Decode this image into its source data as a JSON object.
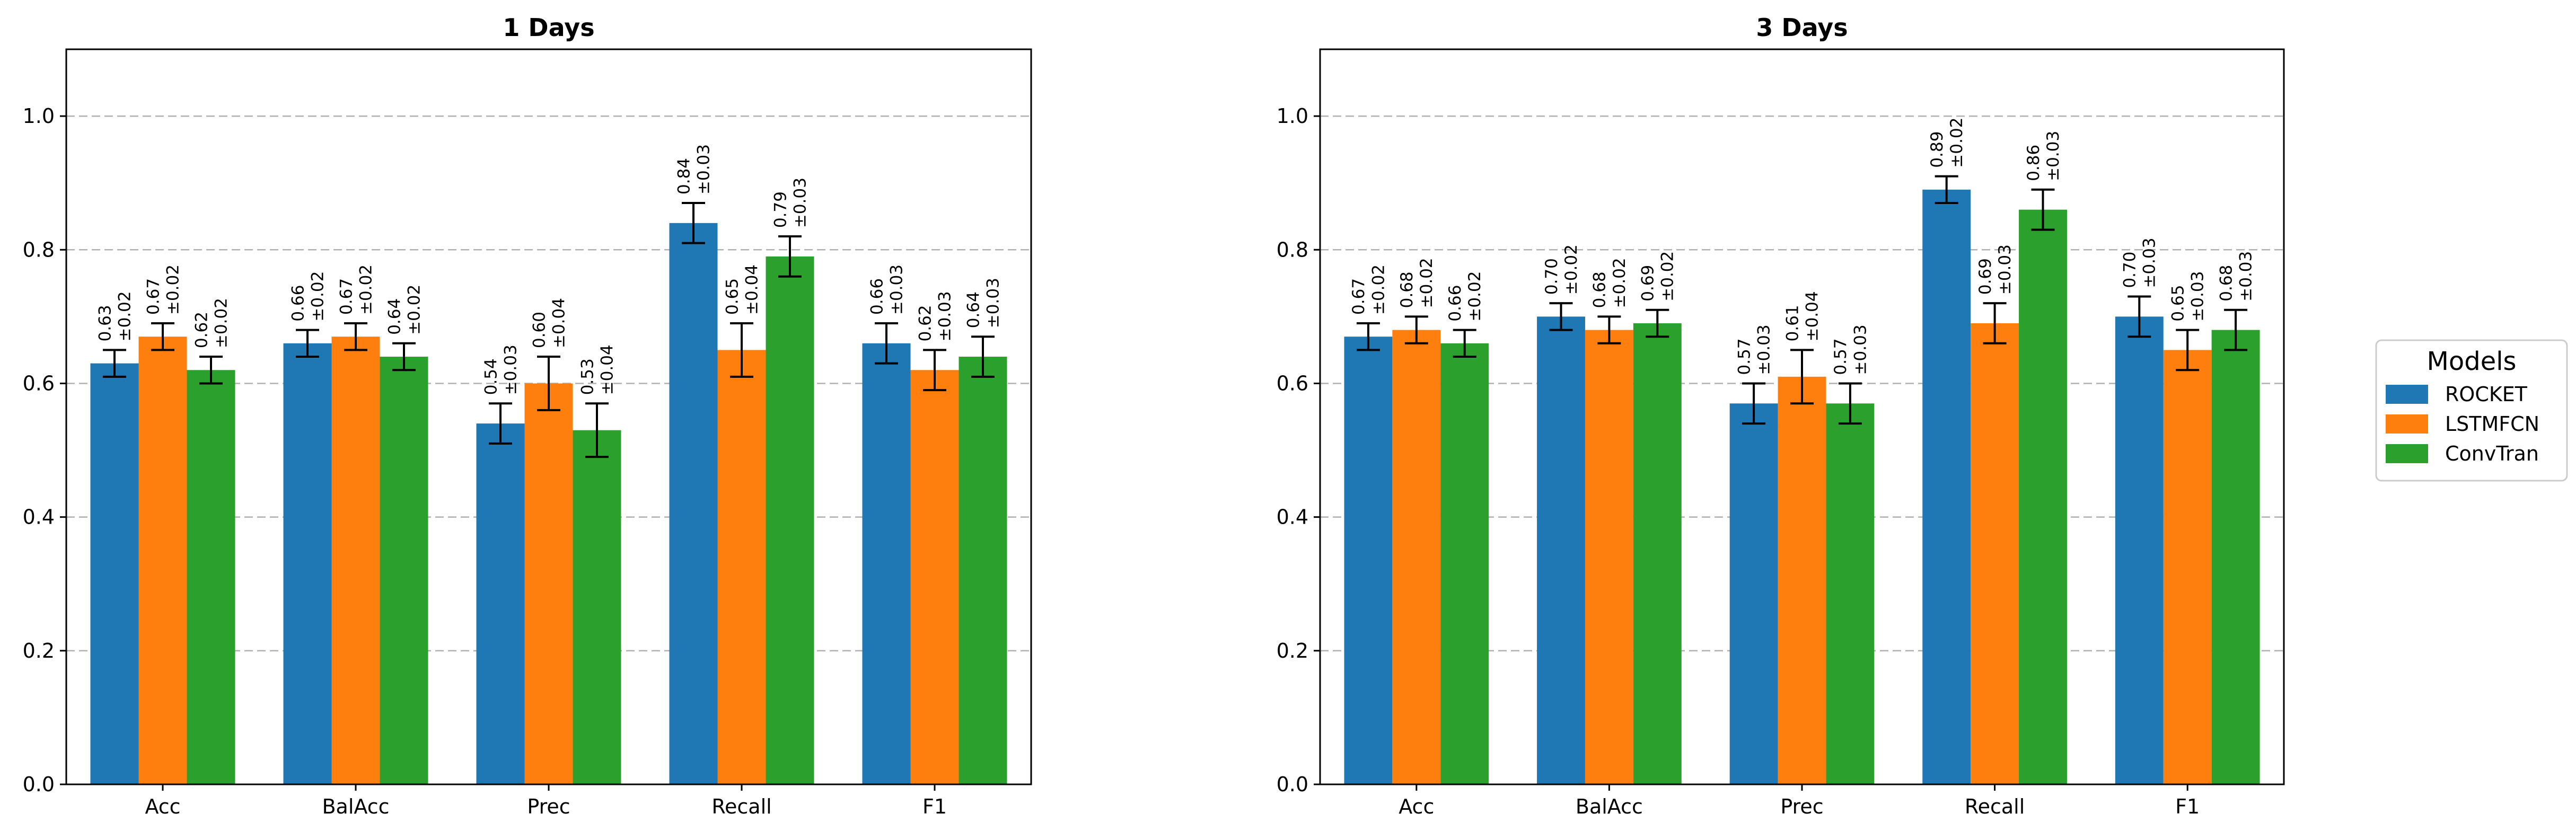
{
  "chart_data": [
    {
      "type": "bar",
      "title": "1 Days",
      "categories": [
        "Acc",
        "BalAcc",
        "Prec",
        "Recall",
        "F1"
      ],
      "ylim": [
        0,
        1.1
      ],
      "yticks": [
        "0.0",
        "0.2",
        "0.4",
        "0.6",
        "0.8",
        "1.0"
      ],
      "grid": "horizontal dashed",
      "series": [
        {
          "name": "ROCKET",
          "values": [
            0.63,
            0.66,
            0.54,
            0.84,
            0.66
          ],
          "errors": [
            0.02,
            0.02,
            0.03,
            0.03,
            0.03
          ],
          "value_labels": [
            "0.63",
            "0.66",
            "0.54",
            "0.84",
            "0.66"
          ],
          "error_labels": [
            "±0.02",
            "±0.02",
            "±0.03",
            "±0.03",
            "±0.03"
          ]
        },
        {
          "name": "LSTMFCN",
          "values": [
            0.67,
            0.67,
            0.6,
            0.65,
            0.62
          ],
          "errors": [
            0.02,
            0.02,
            0.04,
            0.04,
            0.03
          ],
          "value_labels": [
            "0.67",
            "0.67",
            "0.60",
            "0.65",
            "0.62"
          ],
          "error_labels": [
            "±0.02",
            "±0.02",
            "±0.04",
            "±0.04",
            "±0.03"
          ]
        },
        {
          "name": "ConvTran",
          "values": [
            0.62,
            0.64,
            0.53,
            0.79,
            0.64
          ],
          "errors": [
            0.02,
            0.02,
            0.04,
            0.03,
            0.03
          ],
          "value_labels": [
            "0.62",
            "0.64",
            "0.53",
            "0.79",
            "0.64"
          ],
          "error_labels": [
            "±0.02",
            "±0.02",
            "±0.04",
            "±0.03",
            "±0.03"
          ]
        }
      ]
    },
    {
      "type": "bar",
      "title": "3 Days",
      "categories": [
        "Acc",
        "BalAcc",
        "Prec",
        "Recall",
        "F1"
      ],
      "ylim": [
        0,
        1.1
      ],
      "yticks": [
        "0.0",
        "0.2",
        "0.4",
        "0.6",
        "0.8",
        "1.0"
      ],
      "grid": "horizontal dashed",
      "series": [
        {
          "name": "ROCKET",
          "values": [
            0.67,
            0.7,
            0.57,
            0.89,
            0.7
          ],
          "errors": [
            0.02,
            0.02,
            0.03,
            0.02,
            0.03
          ],
          "value_labels": [
            "0.67",
            "0.70",
            "0.57",
            "0.89",
            "0.70"
          ],
          "error_labels": [
            "±0.02",
            "±0.02",
            "±0.03",
            "±0.02",
            "±0.03"
          ]
        },
        {
          "name": "LSTMFCN",
          "values": [
            0.68,
            0.68,
            0.61,
            0.69,
            0.65
          ],
          "errors": [
            0.02,
            0.02,
            0.04,
            0.03,
            0.03
          ],
          "value_labels": [
            "0.68",
            "0.68",
            "0.61",
            "0.69",
            "0.65"
          ],
          "error_labels": [
            "±0.02",
            "±0.02",
            "±0.04",
            "±0.03",
            "±0.03"
          ]
        },
        {
          "name": "ConvTran",
          "values": [
            0.66,
            0.69,
            0.57,
            0.86,
            0.68
          ],
          "errors": [
            0.02,
            0.02,
            0.03,
            0.03,
            0.03
          ],
          "value_labels": [
            "0.66",
            "0.69",
            "0.57",
            "0.86",
            "0.68"
          ],
          "error_labels": [
            "±0.02",
            "±0.02",
            "±0.03",
            "±0.03",
            "±0.03"
          ]
        }
      ]
    }
  ],
  "legend": {
    "title": "Models",
    "placement": "right",
    "entries": [
      "ROCKET",
      "LSTMFCN",
      "ConvTran"
    ]
  },
  "colors": {
    "ROCKET": "#1f77b4",
    "LSTMFCN": "#ff7f0e",
    "ConvTran": "#2ca02c"
  }
}
